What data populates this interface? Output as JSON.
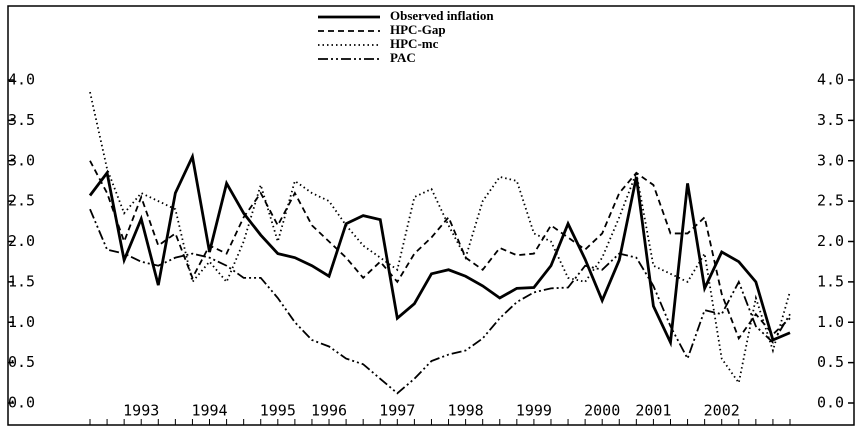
{
  "chart_data": {
    "type": "line",
    "categories": [
      null,
      null,
      null,
      "1993",
      null,
      null,
      null,
      "1994",
      null,
      null,
      null,
      "1995",
      null,
      null,
      "1996",
      null,
      null,
      null,
      "1997",
      null,
      null,
      null,
      "1998",
      null,
      null,
      null,
      "1999",
      null,
      null,
      null,
      "2000",
      null,
      null,
      "2001",
      null,
      null,
      null,
      "2002",
      null,
      null,
      null,
      null
    ],
    "series": [
      {
        "name": "Observed inflation",
        "color": "#000000",
        "dash": "solid",
        "values": [
          2.57,
          2.85,
          1.77,
          2.28,
          1.46,
          2.6,
          3.05,
          1.87,
          2.72,
          2.35,
          2.08,
          1.85,
          1.8,
          1.7,
          1.57,
          2.22,
          2.32,
          2.27,
          1.05,
          1.23,
          1.6,
          1.65,
          1.57,
          1.45,
          1.3,
          1.42,
          1.43,
          1.7,
          2.22,
          1.78,
          1.27,
          1.77,
          2.8,
          1.2,
          0.75,
          2.72,
          1.42,
          1.87,
          1.75,
          1.5,
          0.78,
          0.87
        ]
      },
      {
        "name": "HPC-Gap",
        "color": "#000000",
        "dash": "dashed",
        "values": [
          3.0,
          2.6,
          2.0,
          2.55,
          1.95,
          2.1,
          1.55,
          1.95,
          1.85,
          2.3,
          2.6,
          2.2,
          2.6,
          2.2,
          2.0,
          1.8,
          1.55,
          1.75,
          1.5,
          1.85,
          2.05,
          2.3,
          1.8,
          1.65,
          1.92,
          1.83,
          1.85,
          2.2,
          2.05,
          1.9,
          2.1,
          2.6,
          2.85,
          2.7,
          2.1,
          2.1,
          2.3,
          1.35,
          0.8,
          1.1,
          0.85,
          1.05
        ]
      },
      {
        "name": "HPC-mc",
        "color": "#000000",
        "dash": "dotted",
        "values": [
          3.85,
          2.9,
          2.35,
          2.6,
          2.5,
          2.4,
          1.5,
          1.75,
          1.5,
          2.0,
          2.7,
          2.0,
          2.75,
          2.6,
          2.5,
          2.2,
          1.95,
          1.8,
          1.65,
          2.55,
          2.65,
          2.2,
          1.8,
          2.5,
          2.8,
          2.75,
          2.1,
          2.0,
          1.55,
          1.5,
          1.8,
          2.3,
          2.85,
          1.7,
          1.6,
          1.5,
          1.85,
          0.55,
          0.25,
          1.3,
          0.65,
          1.38
        ]
      },
      {
        "name": "PAC",
        "color": "#000000",
        "dash": "dashdot",
        "values": [
          2.4,
          1.9,
          1.85,
          1.75,
          1.7,
          1.8,
          1.85,
          1.8,
          1.7,
          1.55,
          1.55,
          1.3,
          1.0,
          0.78,
          0.7,
          0.55,
          0.48,
          0.3,
          0.12,
          0.3,
          0.52,
          0.6,
          0.65,
          0.8,
          1.05,
          1.25,
          1.37,
          1.42,
          1.43,
          1.7,
          1.65,
          1.85,
          1.8,
          1.45,
          0.95,
          0.55,
          1.15,
          1.1,
          1.5,
          0.95,
          0.75,
          1.1
        ]
      }
    ],
    "ylim": [
      0,
      4
    ],
    "yticks": [
      {
        "value": 0,
        "label": "0.0"
      },
      {
        "value": 0.5,
        "label": "0.5"
      },
      {
        "value": 1,
        "label": "1.0"
      },
      {
        "value": 1.5,
        "label": "1.5"
      },
      {
        "value": 2,
        "label": "2.0"
      },
      {
        "value": 2.5,
        "label": "2.5"
      },
      {
        "value": 3,
        "label": "3.0"
      },
      {
        "value": 3.5,
        "label": "3.5"
      },
      {
        "value": 4,
        "label": "4.0"
      }
    ],
    "y2lim": [
      0,
      4
    ],
    "y2ticks": [
      {
        "value": 0,
        "label": "0.0"
      },
      {
        "value": 0.5,
        "label": "0.5"
      },
      {
        "value": 1,
        "label": "1.0"
      },
      {
        "value": 1.5,
        "label": "1.5"
      },
      {
        "value": 2,
        "label": "2.0"
      },
      {
        "value": 2.5,
        "label": "2.5"
      },
      {
        "value": 3,
        "label": "3.0"
      },
      {
        "value": 3.5,
        "label": "3.5"
      },
      {
        "value": 4,
        "label": "4.0"
      }
    ],
    "grid": false
  }
}
